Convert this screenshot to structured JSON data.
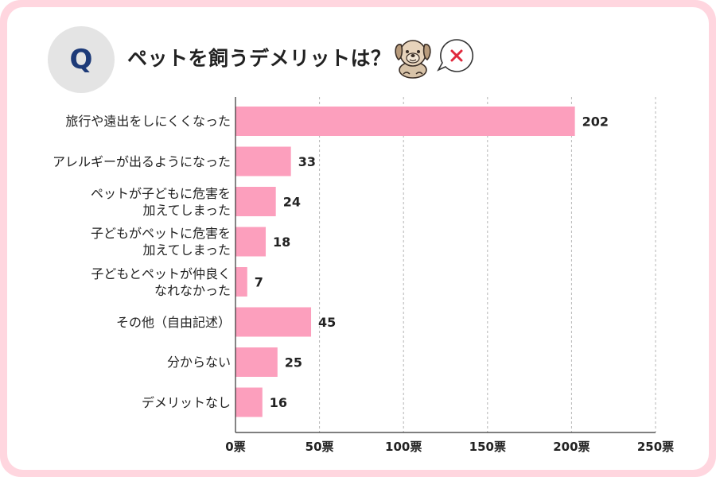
{
  "header": {
    "badge": "Q",
    "title": "ペットを飼うデメリットは？",
    "dog_icon": "dog-icon",
    "bubble_icon": "cross-speech-bubble-icon"
  },
  "colors": {
    "bar": "#fc9fbd",
    "frame": "#ffd6df",
    "badge_text": "#1d3a78"
  },
  "chart_data": {
    "type": "bar",
    "orientation": "horizontal",
    "title": "ペットを飼うデメリットは？",
    "categories": [
      "旅行や遠出をしにくくなった",
      "アレルギーが出るようになった",
      "ペットが子どもに危害を加えてしまった",
      "子どもがペットに危害を加えてしまった",
      "子どもとペットが仲良くなれなかった",
      "その他（自由記述）",
      "分からない",
      "デメリットなし"
    ],
    "category_lines": [
      [
        "旅行や遠出をしにくくなった"
      ],
      [
        "アレルギーが出るようになった"
      ],
      [
        "ペットが子どもに危害を",
        "加えてしまった"
      ],
      [
        "子どもがペットに危害を",
        "加えてしまった"
      ],
      [
        "子どもとペットが仲良く",
        "なれなかった"
      ],
      [
        "その他（自由記述）"
      ],
      [
        "分からない"
      ],
      [
        "デメリットなし"
      ]
    ],
    "values": [
      202,
      33,
      24,
      18,
      7,
      45,
      25,
      16
    ],
    "xlim": [
      0,
      250
    ],
    "xticks": [
      0,
      50,
      100,
      150,
      200,
      250
    ],
    "tick_unit": "票",
    "grid": true,
    "legend": "none"
  }
}
